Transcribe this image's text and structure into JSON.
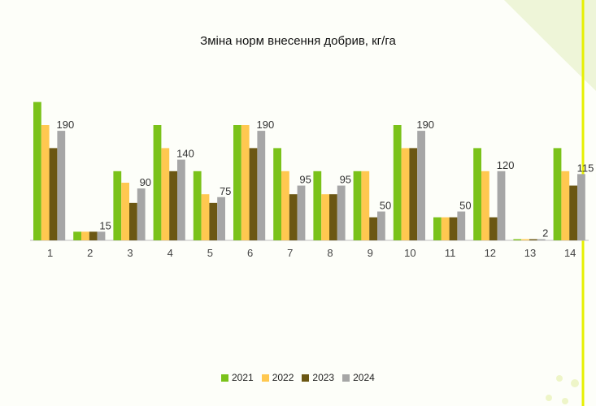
{
  "chart_data": {
    "type": "bar",
    "title": "Зміна норм внесення добрив, кг/га",
    "categories": [
      "1",
      "2",
      "3",
      "4",
      "5",
      "6",
      "7",
      "8",
      "9",
      "10",
      "11",
      "12",
      "13",
      "14"
    ],
    "series": [
      {
        "name": "2021",
        "color": "#7ac21a",
        "values": [
          240,
          15,
          120,
          200,
          120,
          200,
          160,
          120,
          120,
          200,
          40,
          160,
          2,
          160
        ]
      },
      {
        "name": "2022",
        "color": "#ffc850",
        "values": [
          200,
          15,
          100,
          160,
          80,
          200,
          120,
          80,
          120,
          160,
          40,
          120,
          2,
          120
        ]
      },
      {
        "name": "2023",
        "color": "#6b5713",
        "values": [
          160,
          15,
          65,
          120,
          65,
          160,
          80,
          80,
          40,
          160,
          40,
          40,
          2,
          95
        ]
      },
      {
        "name": "2024",
        "color": "#a6a6a6",
        "values": [
          190,
          15,
          90,
          140,
          75,
          190,
          95,
          95,
          50,
          190,
          50,
          120,
          2,
          115
        ]
      }
    ],
    "data_labels": [
      "190",
      "15",
      "90",
      "140",
      "75",
      "190",
      "95",
      "95",
      "50",
      "190",
      "50",
      "120",
      "2",
      "115"
    ],
    "ylim": [
      0,
      250
    ],
    "grid": false,
    "legend_position": "bottom"
  }
}
